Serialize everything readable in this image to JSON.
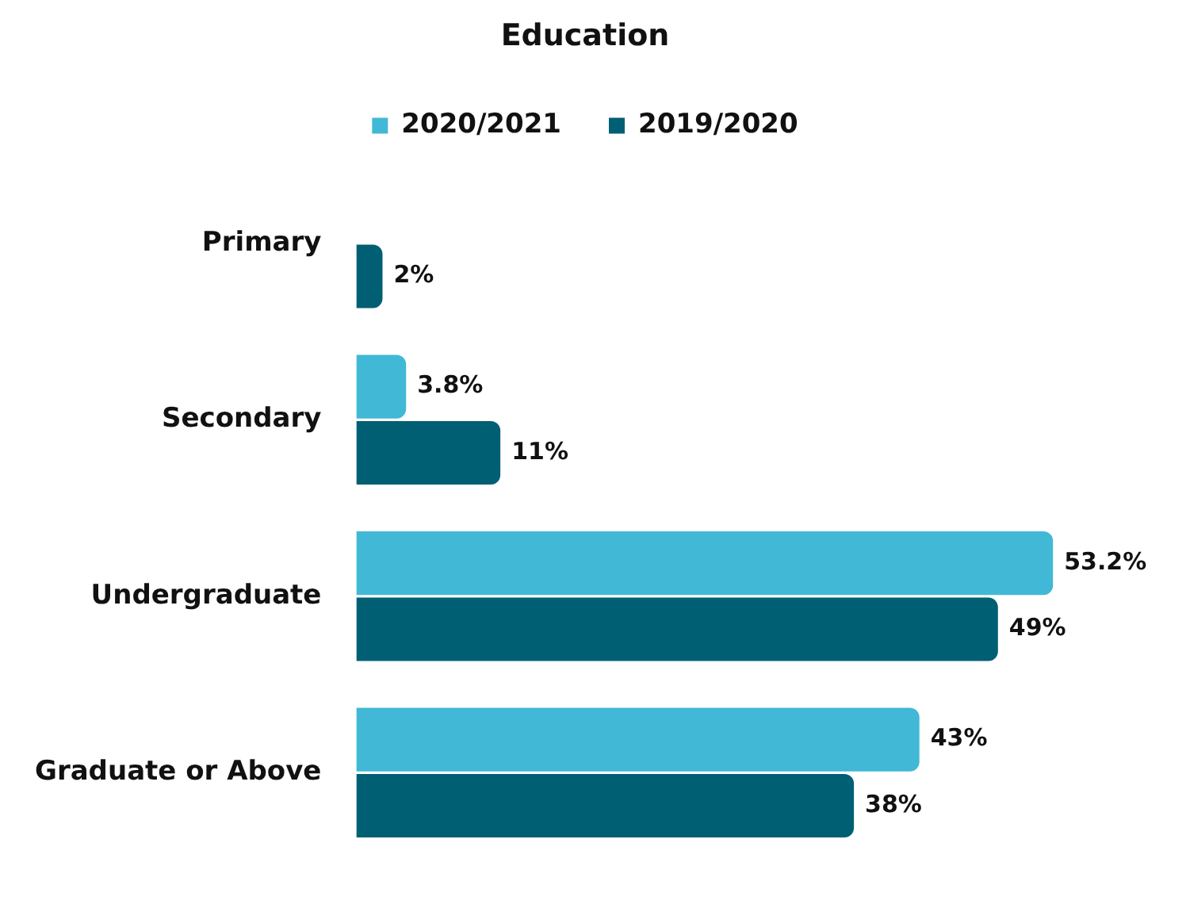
{
  "chart_data": {
    "type": "bar",
    "orientation": "horizontal",
    "title": "Education",
    "categories": [
      "Primary",
      "Secondary",
      "Undergraduate",
      "Graduate or Above"
    ],
    "legend": "top",
    "series": [
      {
        "name": "2020/2021",
        "color": "#41b8d5",
        "values": [
          null,
          3.8,
          53.2,
          43
        ],
        "value_labels": [
          null,
          "3.8%",
          "53.2%",
          "43%"
        ]
      },
      {
        "name": "2019/2020",
        "color": "#005f73",
        "values": [
          2,
          11,
          49,
          38
        ],
        "value_labels": [
          "2%",
          "11%",
          "49%",
          "38%"
        ]
      }
    ]
  }
}
